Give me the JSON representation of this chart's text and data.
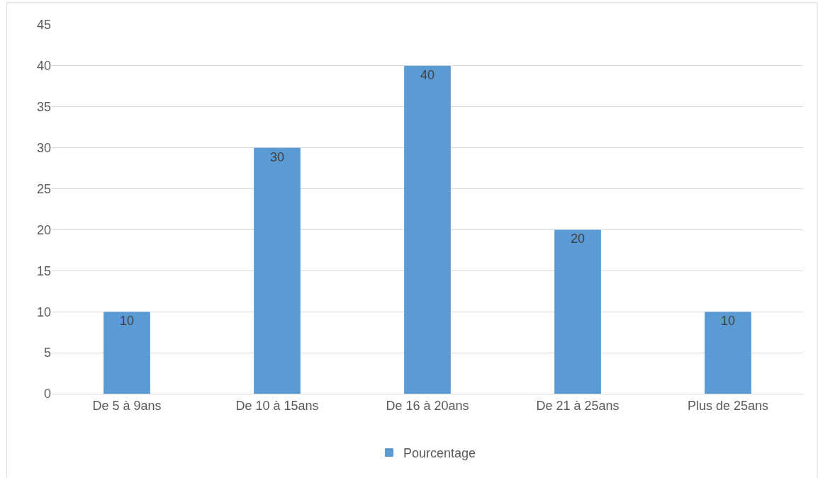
{
  "chart_data": {
    "type": "bar",
    "categories": [
      "De 5 à 9ans",
      "De 10 à 15ans",
      "De 16 à 20ans",
      "De 21 à 25ans",
      "Plus de 25ans"
    ],
    "series": [
      {
        "name": "Pourcentage",
        "color": "#5b9bd5",
        "values": [
          10,
          30,
          40,
          20,
          10
        ]
      }
    ],
    "ylim": [
      0,
      45
    ],
    "yticks": [
      0,
      5,
      10,
      15,
      20,
      25,
      30,
      35,
      40,
      45
    ],
    "grid": "y",
    "legend": "bottom",
    "data_labels": true
  }
}
